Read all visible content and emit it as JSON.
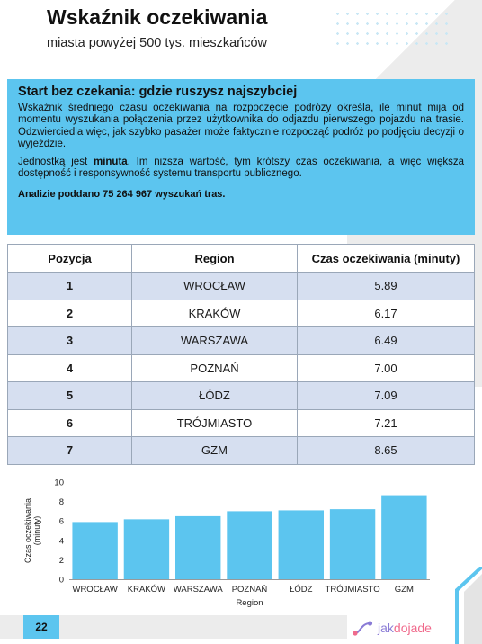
{
  "header": {
    "title": "Wskaźnik oczekiwania",
    "subtitle": "miasta powyżej 500 tys. mieszkańców"
  },
  "infobox": {
    "heading": "Start bez czekania: gdzie ruszysz najszybciej",
    "paragraph1": "Wskaźnik średniego czasu oczekiwania na rozpoczęcie podróży określa, ile minut mija od momentu wyszukania połączenia przez użytkownika do odjazdu pierwszego pojazdu na trasie. Odzwierciedla więc, jak szybko pasażer może faktycznie rozpocząć podróż po podjęciu decyzji o wyjeździe.",
    "paragraph2_before": "Jednostką jest ",
    "paragraph2_bold": "minuta",
    "paragraph2_after": ". Im niższa wartość, tym krótszy czas oczekiwania, a więc większa dostępność i responsywność systemu transportu publicznego.",
    "note": "Analizie poddano 75 264 967 wyszukań tras."
  },
  "table": {
    "headers": [
      "Pozycja",
      "Region",
      "Czas oczekiwania (minuty)"
    ],
    "rows": [
      [
        "1",
        "WROCŁAW",
        "5.89"
      ],
      [
        "2",
        "KRAKÓW",
        "6.17"
      ],
      [
        "3",
        "WARSZAWA",
        "6.49"
      ],
      [
        "4",
        "POZNAŃ",
        "7.00"
      ],
      [
        "5",
        "ŁÓDZ",
        "7.09"
      ],
      [
        "6",
        "TRÓJMIASTO",
        "7.21"
      ],
      [
        "7",
        "GZM",
        "8.65"
      ]
    ]
  },
  "chart_data": {
    "type": "bar",
    "categories": [
      "WROCŁAW",
      "KRAKÓW",
      "WARSZAWA",
      "POZNAŃ",
      "ŁÓDZ",
      "TRÓJMIASTO",
      "GZM"
    ],
    "values": [
      5.89,
      6.17,
      6.49,
      7.0,
      7.09,
      7.21,
      8.65
    ],
    "xlabel": "Region",
    "ylabel": "Czas oczekiwania (minuty)",
    "ylabel_lines": [
      "Czas oczekiwania",
      "(minuty)"
    ],
    "ylim": [
      0,
      10
    ],
    "yticks": [
      0,
      2,
      4,
      6,
      8,
      10
    ],
    "grid": false,
    "bar_color": "#5cc5ef"
  },
  "footer": {
    "page_number": "22",
    "logo_jak": "jak",
    "logo_dojade": "dojade"
  },
  "colors": {
    "accent": "#5cc5ef",
    "row_highlight": "#d6dff0",
    "panel_gray": "#ececec"
  }
}
